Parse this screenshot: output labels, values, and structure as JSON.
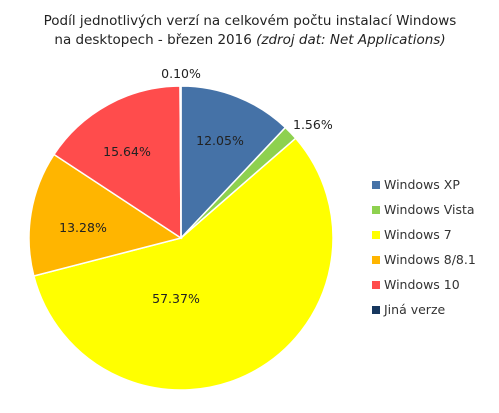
{
  "chart_data": {
    "type": "pie",
    "title_line1": "Podíl jednotlivých  verzí na celkovém počtu instalací Windows",
    "title_line2_main": "na desktopech - březen 2016",
    "title_line2_source": "(zdroj dat: Net Applications)",
    "legend_position": "right",
    "slices": [
      {
        "name": "Windows XP",
        "value": 12.05,
        "label": "12.05%",
        "color": "#4572A7"
      },
      {
        "name": "Windows Vista",
        "value": 1.56,
        "label": "1.56%",
        "color": "#8ED14F"
      },
      {
        "name": "Windows 7",
        "value": 57.37,
        "label": "57.37%",
        "color": "#FFFF00"
      },
      {
        "name": "Windows 8/8.1",
        "value": 13.28,
        "label": "13.28%",
        "color": "#FFB500"
      },
      {
        "name": "Windows 10",
        "value": 15.64,
        "label": "15.64%",
        "color": "#FF4C4C"
      },
      {
        "name": "Jiná verze",
        "value": 0.1,
        "label": "0.10%",
        "color": "#17375E"
      }
    ]
  }
}
